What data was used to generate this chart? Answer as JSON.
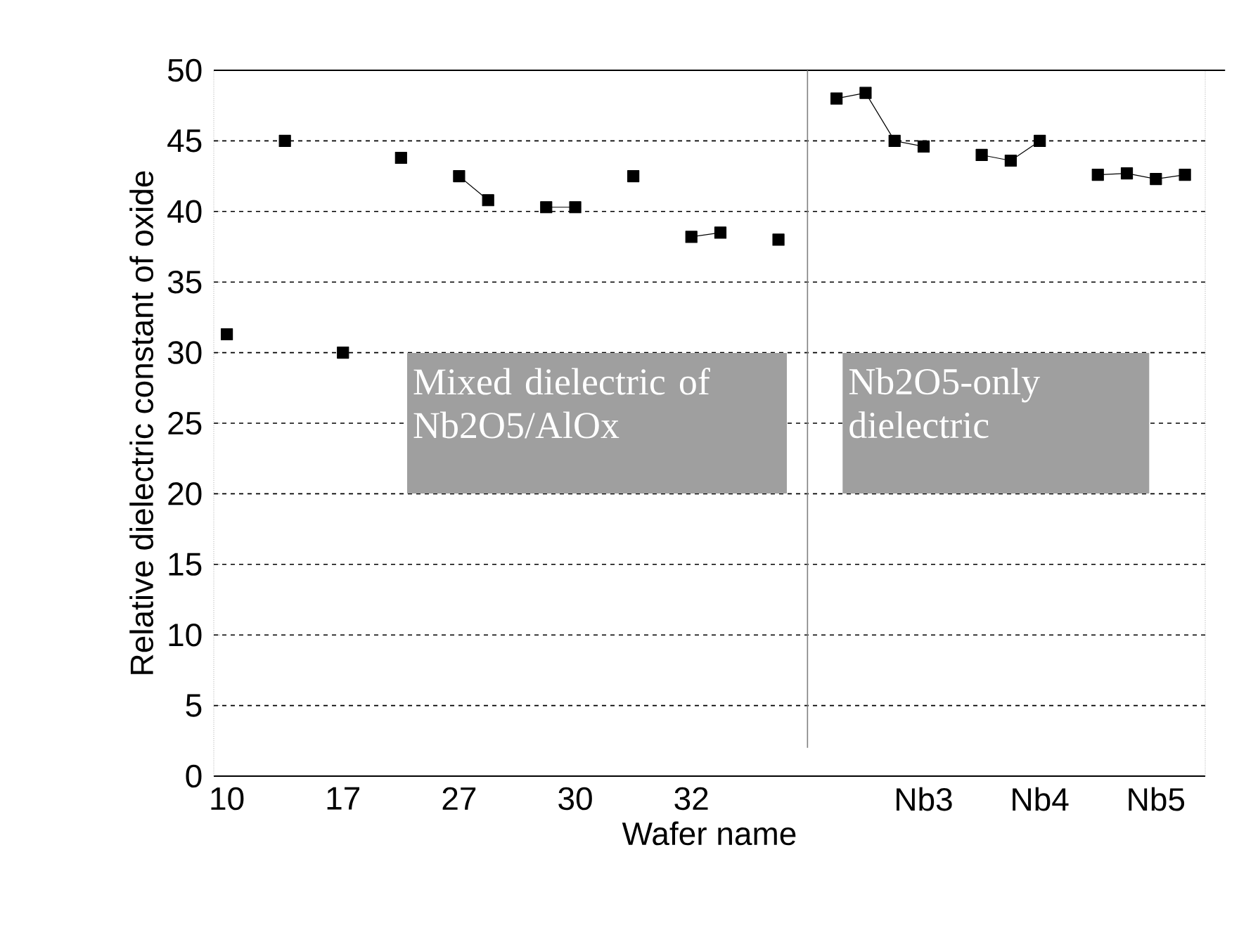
{
  "chart_data": {
    "type": "line",
    "xlabel": "Wafer name",
    "ylabel": "Relative dielectric constant of oxide",
    "categories": [
      "10",
      null,
      null,
      null,
      "17",
      null,
      null,
      null,
      "27",
      null,
      null,
      null,
      "30",
      null,
      null,
      null,
      "32",
      null,
      null,
      null,
      null,
      null,
      null,
      null,
      "Nb3",
      null,
      null,
      null,
      "Nb4",
      null,
      null,
      null,
      "Nb5",
      null
    ],
    "values": [
      31.3,
      null,
      45,
      null,
      30,
      null,
      43.8,
      null,
      42.5,
      40.8,
      null,
      40.3,
      40.3,
      null,
      42.5,
      null,
      38.2,
      38.5,
      null,
      38,
      null,
      48,
      48.4,
      45,
      44.6,
      null,
      44,
      43.6,
      45,
      null,
      42.6,
      42.7,
      42.3,
      42.6
    ],
    "color": "#000000",
    "marker": "square",
    "line_style": "solid",
    "ylim": [
      0,
      50
    ],
    "yticks": [
      0,
      5,
      10,
      15,
      20,
      25,
      30,
      35,
      40,
      45,
      50
    ],
    "grid": "y",
    "annotations": [
      "Mixed dielectric of Nb2O5/AlOx",
      "Nb2O5-only dielectric"
    ]
  }
}
